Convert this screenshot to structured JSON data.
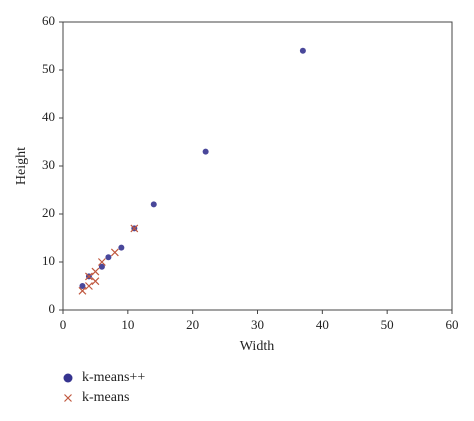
{
  "chart_data": {
    "type": "scatter",
    "x_label": "Width",
    "y_label": "Height",
    "xlim": [
      0,
      60
    ],
    "ylim": [
      0,
      60
    ],
    "xticks": [
      0,
      10,
      20,
      30,
      40,
      50,
      60
    ],
    "yticks": [
      0,
      10,
      20,
      30,
      40,
      50,
      60
    ],
    "grid": false,
    "legend": "bottom-left",
    "series": [
      {
        "name": "k-means++",
        "color": "#35338f",
        "marker": "circle",
        "x": [
          37,
          22,
          14,
          11,
          9,
          7,
          6,
          4,
          3
        ],
        "values": [
          54,
          33,
          22,
          17,
          13,
          11,
          9,
          7,
          5
        ]
      },
      {
        "name": "k-means",
        "color": "#c0583f",
        "marker": "x",
        "x": [
          3,
          4,
          5,
          5,
          6,
          8,
          11,
          4
        ],
        "values": [
          4,
          5,
          6,
          8,
          10,
          12,
          17,
          7
        ]
      }
    ]
  }
}
